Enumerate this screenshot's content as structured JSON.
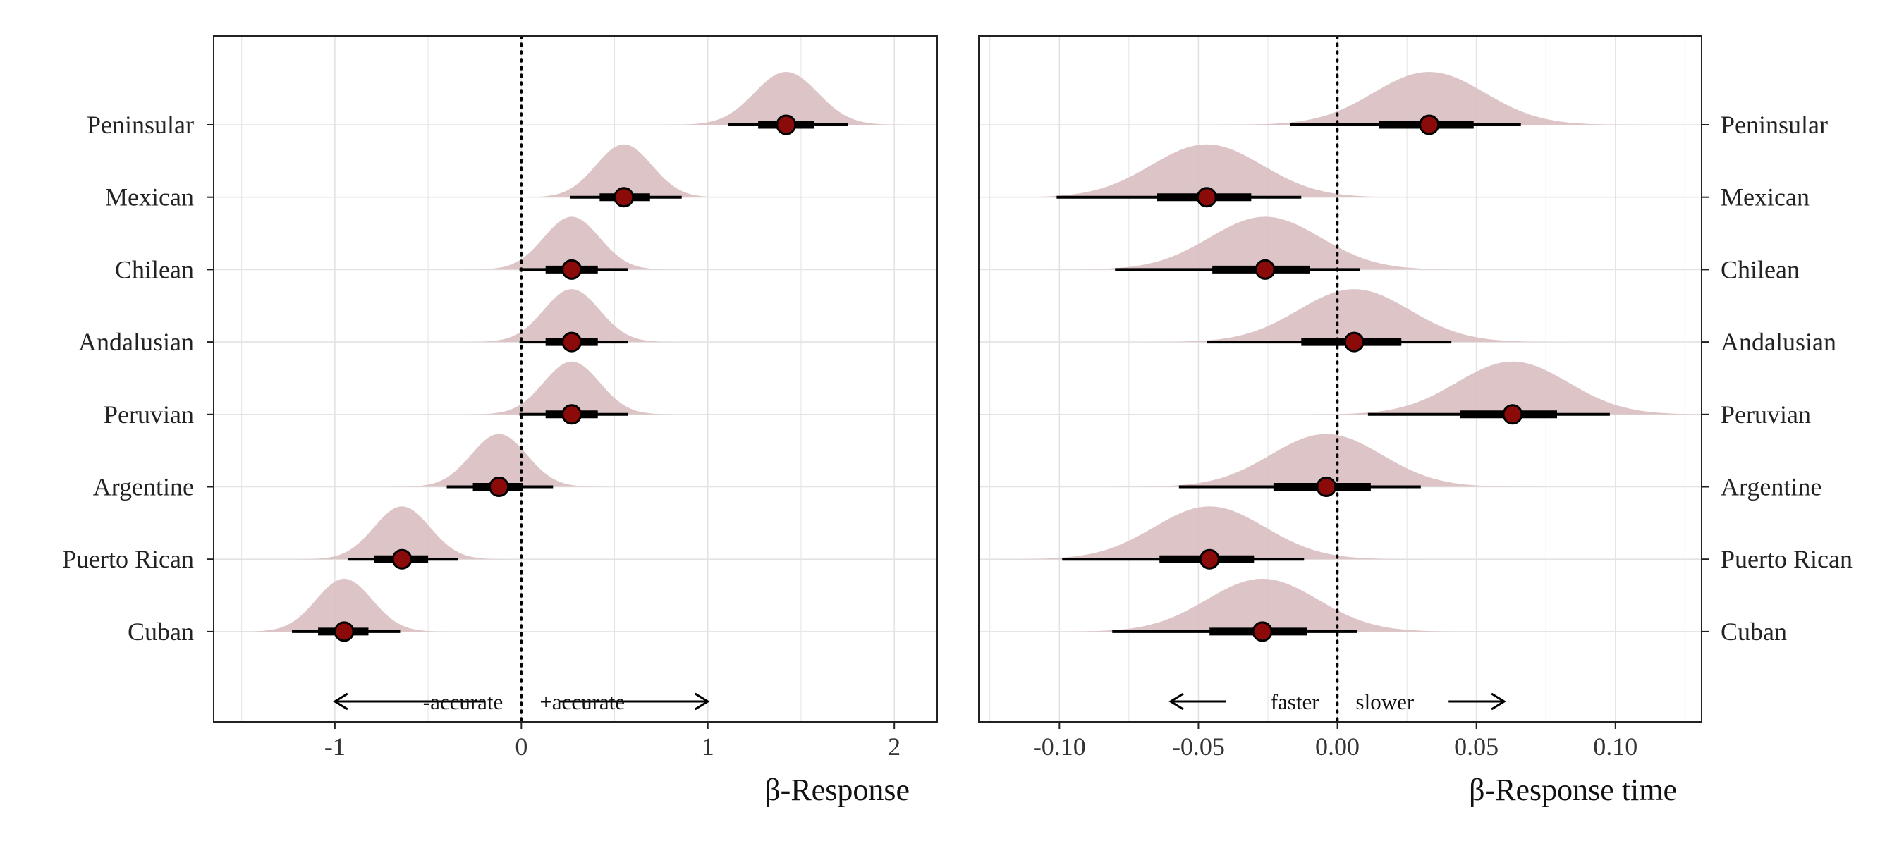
{
  "chart_data": [
    {
      "type": "halfeye",
      "panel": "left",
      "xlabel": "β-Response",
      "xlim": [
        -1.65,
        2.23
      ],
      "xticks": [
        -1,
        0,
        1,
        2
      ],
      "xtick_labels": [
        "-1",
        "0",
        "1",
        "2"
      ],
      "reference_line": 0,
      "categories": [
        "Peninsular",
        "Mexican",
        "Chilean",
        "Andalusian",
        "Peruvian",
        "Argentine",
        "Puerto Rican",
        "Cuban"
      ],
      "estimates": [
        {
          "label": "Peninsular",
          "median": 1.42,
          "q66": [
            1.27,
            1.57
          ],
          "q95": [
            1.11,
            1.75
          ],
          "sd": 0.17
        },
        {
          "label": "Mexican",
          "median": 0.55,
          "q66": [
            0.42,
            0.69
          ],
          "q95": [
            0.26,
            0.86
          ],
          "sd": 0.15
        },
        {
          "label": "Chilean",
          "median": 0.27,
          "q66": [
            0.13,
            0.41
          ],
          "q95": [
            -0.01,
            0.57
          ],
          "sd": 0.15
        },
        {
          "label": "Andalusian",
          "median": 0.27,
          "q66": [
            0.13,
            0.41
          ],
          "q95": [
            -0.01,
            0.57
          ],
          "sd": 0.15
        },
        {
          "label": "Peruvian",
          "median": 0.27,
          "q66": [
            0.13,
            0.41
          ],
          "q95": [
            -0.01,
            0.57
          ],
          "sd": 0.15
        },
        {
          "label": "Argentine",
          "median": -0.12,
          "q66": [
            -0.26,
            0.01
          ],
          "q95": [
            -0.4,
            0.17
          ],
          "sd": 0.15
        },
        {
          "label": "Puerto Rican",
          "median": -0.64,
          "q66": [
            -0.79,
            -0.5
          ],
          "q95": [
            -0.93,
            -0.34
          ],
          "sd": 0.15
        },
        {
          "label": "Cuban",
          "median": -0.95,
          "q66": [
            -1.09,
            -0.82
          ],
          "q95": [
            -1.23,
            -0.65
          ],
          "sd": 0.15
        }
      ],
      "annotation": {
        "left_text": "-accurate",
        "right_text": "+accurate",
        "arrow_left": [
          -0.2,
          -1
        ],
        "arrow_right": [
          0.2,
          1
        ]
      },
      "ylabels_side": "left",
      "grid": true
    },
    {
      "type": "halfeye",
      "panel": "right",
      "xlabel": "β-Response time",
      "xlim": [
        -0.129,
        0.131
      ],
      "xticks": [
        -0.1,
        -0.05,
        0,
        0.05,
        0.1
      ],
      "xtick_labels": [
        "-0.10",
        "-0.05",
        "0.00",
        "0.05",
        "0.10"
      ],
      "reference_line": 0,
      "categories": [
        "Peninsular",
        "Mexican",
        "Chilean",
        "Andalusian",
        "Peruvian",
        "Argentine",
        "Puerto Rican",
        "Cuban"
      ],
      "estimates": [
        {
          "label": "Peninsular",
          "median": 0.033,
          "q66": [
            0.015,
            0.049
          ],
          "q95": [
            -0.017,
            0.066
          ],
          "sd": 0.02
        },
        {
          "label": "Mexican",
          "median": -0.047,
          "q66": [
            -0.065,
            -0.031
          ],
          "q95": [
            -0.101,
            -0.013
          ],
          "sd": 0.02
        },
        {
          "label": "Chilean",
          "median": -0.026,
          "q66": [
            -0.045,
            -0.01
          ],
          "q95": [
            -0.08,
            0.008
          ],
          "sd": 0.02
        },
        {
          "label": "Andalusian",
          "median": 0.006,
          "q66": [
            -0.013,
            0.023
          ],
          "q95": [
            -0.047,
            0.041
          ],
          "sd": 0.02
        },
        {
          "label": "Peruvian",
          "median": 0.063,
          "q66": [
            0.044,
            0.079
          ],
          "q95": [
            0.011,
            0.098
          ],
          "sd": 0.02
        },
        {
          "label": "Argentine",
          "median": -0.004,
          "q66": [
            -0.023,
            0.012
          ],
          "q95": [
            -0.057,
            0.03
          ],
          "sd": 0.02
        },
        {
          "label": "Puerto Rican",
          "median": -0.046,
          "q66": [
            -0.064,
            -0.03
          ],
          "q95": [
            -0.099,
            -0.012
          ],
          "sd": 0.02
        },
        {
          "label": "Cuban",
          "median": -0.027,
          "q66": [
            -0.046,
            -0.011
          ],
          "q95": [
            -0.081,
            0.007
          ],
          "sd": 0.02
        }
      ],
      "annotation": {
        "left_text": "faster",
        "right_text": "slower",
        "arrow_left": [
          -0.04,
          -0.06
        ],
        "arrow_right": [
          0.04,
          0.06
        ]
      },
      "ylabels_side": "right",
      "grid": true
    }
  ],
  "colors": {
    "density": "#d9bfc1",
    "point_fill": "#8b0a0a",
    "interval": "#000000",
    "grid": "#e3e3e3",
    "panel_border": "#222222"
  }
}
